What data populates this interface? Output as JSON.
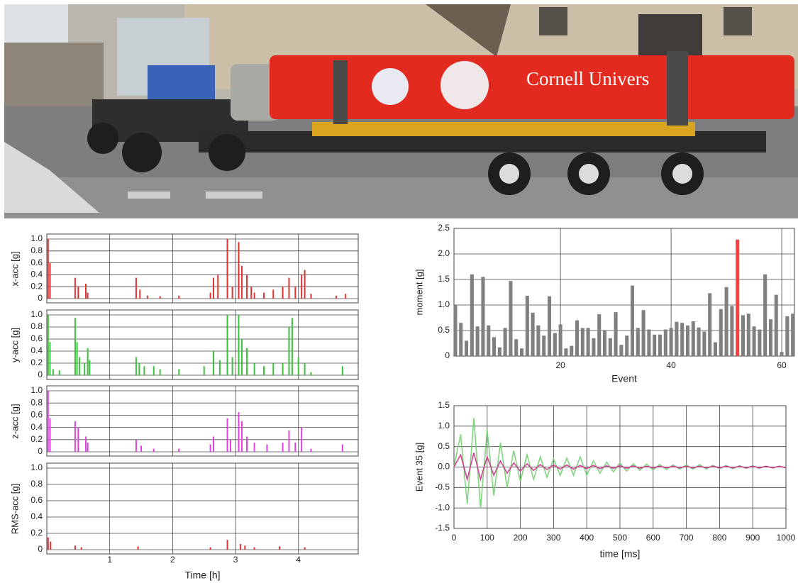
{
  "photo": {
    "text": "Cornell Univers"
  },
  "chart_data": [
    {
      "type": "stem",
      "y_label": "x-acc [g]",
      "color": "#e03030",
      "x": [
        0.02,
        0.05,
        0.45,
        0.5,
        0.62,
        0.65,
        1.42,
        1.48,
        1.6,
        1.8,
        2.1,
        2.6,
        2.65,
        2.72,
        2.87,
        2.95,
        3.05,
        3.1,
        3.18,
        3.25,
        3.3,
        3.45,
        3.6,
        3.75,
        3.85,
        3.95,
        4.05,
        4.1,
        4.2,
        4.6,
        4.75
      ],
      "values": [
        1.0,
        0.6,
        0.35,
        0.2,
        0.25,
        0.1,
        0.35,
        0.15,
        0.05,
        0.04,
        0.05,
        0.1,
        0.35,
        0.4,
        1.0,
        0.2,
        0.95,
        0.55,
        0.4,
        0.2,
        0.1,
        0.1,
        0.15,
        0.2,
        0.35,
        0.2,
        0.4,
        0.48,
        0.08,
        0.05,
        0.08
      ],
      "ylim": [
        0,
        1
      ],
      "yticks": [
        0,
        0.2,
        0.4,
        0.6,
        0.8,
        {
          "value": 1,
          "label": "1.0"
        }
      ],
      "grid": true
    },
    {
      "type": "stem",
      "y_label": "y-acc [g]",
      "color": "#3cc03c",
      "x": [
        0.02,
        0.05,
        0.1,
        0.2,
        0.45,
        0.48,
        0.52,
        0.6,
        0.65,
        0.68,
        1.42,
        1.47,
        1.55,
        1.7,
        1.8,
        2.1,
        2.5,
        2.65,
        2.75,
        2.87,
        2.95,
        3.05,
        3.1,
        3.18,
        3.3,
        3.45,
        3.6,
        3.75,
        3.85,
        3.9,
        4.0,
        4.1,
        4.2,
        4.7
      ],
      "values": [
        1.0,
        0.55,
        0.1,
        0.08,
        0.95,
        0.55,
        0.3,
        0.2,
        0.45,
        0.25,
        0.3,
        0.2,
        0.15,
        0.15,
        0.1,
        0.1,
        0.15,
        0.4,
        0.25,
        1.0,
        0.3,
        1.0,
        0.6,
        0.45,
        0.2,
        0.15,
        0.2,
        0.2,
        0.8,
        0.95,
        0.3,
        0.2,
        0.05,
        0.15
      ],
      "ylim": [
        0,
        1
      ],
      "yticks": [
        0,
        0.2,
        0.4,
        0.6,
        0.8,
        {
          "value": 1,
          "label": "1.0"
        }
      ],
      "grid": true
    },
    {
      "type": "stem",
      "y_label": "z-acc [g]",
      "color": "#e040e0",
      "x": [
        0.02,
        0.05,
        0.45,
        0.5,
        0.62,
        0.65,
        1.42,
        1.5,
        1.7,
        2.1,
        2.6,
        2.65,
        2.87,
        2.92,
        3.05,
        3.1,
        3.18,
        3.3,
        3.5,
        3.75,
        3.85,
        3.95,
        4.05,
        4.2,
        4.7
      ],
      "values": [
        1.0,
        0.55,
        0.5,
        0.4,
        0.25,
        0.15,
        0.2,
        0.1,
        0.05,
        0.05,
        0.12,
        0.25,
        0.55,
        0.2,
        0.65,
        0.5,
        0.25,
        0.15,
        0.12,
        0.15,
        0.35,
        0.15,
        0.4,
        0.05,
        0.12
      ],
      "ylim": [
        0,
        1
      ],
      "yticks": [
        0,
        0.2,
        0.4,
        0.6,
        0.8,
        {
          "value": 1,
          "label": "1.0"
        }
      ],
      "grid": true
    },
    {
      "type": "stem",
      "y_label": "RMS-acc [g]",
      "x_label": "Time [h]",
      "color": "#e03030",
      "x": [
        0.02,
        0.06,
        0.45,
        0.55,
        1.45,
        2.6,
        2.87,
        3.08,
        3.15,
        3.3,
        3.7,
        4.1
      ],
      "values": [
        0.15,
        0.1,
        0.05,
        0.03,
        0.04,
        0.03,
        0.12,
        0.07,
        0.05,
        0.03,
        0.04,
        0.03
      ],
      "xlim": [
        0,
        4.95
      ],
      "xticks": [
        1,
        2,
        3,
        4
      ],
      "ylim": [
        0,
        1
      ],
      "yticks": [
        0,
        0.2,
        0.4,
        0.6,
        0.8,
        {
          "value": 1,
          "label": "1.0"
        }
      ],
      "grid": true
    },
    {
      "type": "bar",
      "x_label": "Event",
      "y_label": "moment [g]",
      "x": [
        1,
        2,
        3,
        4,
        5,
        6,
        7,
        8,
        9,
        10,
        11,
        12,
        13,
        14,
        15,
        16,
        17,
        18,
        19,
        20,
        21,
        22,
        23,
        24,
        25,
        26,
        27,
        28,
        29,
        30,
        31,
        32,
        33,
        34,
        35,
        36,
        37,
        38,
        39,
        40,
        41,
        42,
        43,
        44,
        45,
        46,
        47,
        48,
        49,
        50,
        51,
        52,
        53,
        54,
        55,
        56,
        57,
        58,
        59,
        60,
        61,
        62
      ],
      "values": [
        1.0,
        0.65,
        0.3,
        1.6,
        0.58,
        1.55,
        0.6,
        0.37,
        0.17,
        0.55,
        1.47,
        0.33,
        0.15,
        1.18,
        0.85,
        0.6,
        0.4,
        1.17,
        0.45,
        0.62,
        0.15,
        0.2,
        0.7,
        0.55,
        0.55,
        0.35,
        0.82,
        0.5,
        0.35,
        0.86,
        0.22,
        0.4,
        1.38,
        0.55,
        0.9,
        0.52,
        0.42,
        0.42,
        0.52,
        0.55,
        0.67,
        0.65,
        0.6,
        0.68,
        0.56,
        0.48,
        1.23,
        0.27,
        0.92,
        1.35,
        0.98,
        2.28,
        0.8,
        0.83,
        0.58,
        0.52,
        1.6,
        0.72,
        1.2,
        0.08,
        0.78,
        0.83
      ],
      "colors": [
        "#808080",
        "#808080",
        "#808080",
        "#808080",
        "#808080",
        "#808080",
        "#808080",
        "#808080",
        "#808080",
        "#808080",
        "#808080",
        "#808080",
        "#808080",
        "#808080",
        "#808080",
        "#808080",
        "#808080",
        "#808080",
        "#808080",
        "#808080",
        "#808080",
        "#808080",
        "#808080",
        "#808080",
        "#808080",
        "#808080",
        "#808080",
        "#808080",
        "#808080",
        "#808080",
        "#808080",
        "#808080",
        "#808080",
        "#808080",
        "#808080",
        "#808080",
        "#808080",
        "#808080",
        "#808080",
        "#808080",
        "#808080",
        "#808080",
        "#808080",
        "#808080",
        "#808080",
        "#808080",
        "#808080",
        "#808080",
        "#808080",
        "#808080",
        "#808080",
        "#ff4040",
        "#808080",
        "#808080",
        "#808080",
        "#808080",
        "#808080",
        "#808080",
        "#808080",
        "#808080",
        "#808080",
        "#808080"
      ],
      "xlim": [
        0.75,
        62.3
      ],
      "xticks": [
        20,
        40,
        60
      ],
      "ylim": [
        0,
        2.5
      ],
      "yticks": [
        0,
        0.5,
        {
          "value": 1,
          "label": "1.0"
        },
        1.5,
        {
          "value": 2,
          "label": "2.0"
        },
        2.5
      ],
      "grid": true
    },
    {
      "type": "line",
      "x_label": "time [ms]",
      "y_label": "Event 35 [g]",
      "x": [
        0,
        20,
        40,
        60,
        80,
        100,
        120,
        140,
        160,
        180,
        200,
        220,
        240,
        260,
        280,
        300,
        320,
        340,
        360,
        380,
        400,
        420,
        440,
        460,
        480,
        500,
        520,
        540,
        560,
        580,
        600,
        620,
        640,
        660,
        680,
        700,
        720,
        740,
        760,
        780,
        800,
        820,
        840,
        860,
        880,
        900,
        920,
        940,
        960,
        980,
        1000
      ],
      "series": [
        {
          "color": "#70d070",
          "values": [
            0,
            0.8,
            -0.9,
            1.2,
            -1.0,
            0.9,
            -0.7,
            0.6,
            -0.5,
            0.4,
            -0.35,
            0.3,
            -0.3,
            0.25,
            -0.25,
            0.2,
            -0.2,
            0.22,
            -0.2,
            0.25,
            -0.2,
            0.15,
            -0.15,
            0.12,
            -0.12,
            0.1,
            -0.1,
            0.08,
            -0.08,
            0.07,
            -0.07,
            0.06,
            -0.06,
            0.05,
            -0.05,
            0.05,
            -0.05,
            0.06,
            -0.05,
            0.04,
            -0.04,
            0.04,
            -0.04,
            0.03,
            -0.03,
            0.03,
            -0.03,
            0.02,
            -0.02,
            0.02,
            -0.02
          ]
        },
        {
          "color": "#d0308a",
          "values": [
            0,
            0.3,
            -0.3,
            0.35,
            -0.3,
            0.25,
            -0.2,
            0.15,
            -0.15,
            0.1,
            -0.1,
            0.08,
            -0.08,
            0.06,
            -0.06,
            0.05,
            -0.05,
            0.05,
            -0.05,
            0.04,
            -0.04,
            0.04,
            -0.04,
            0.03,
            -0.03,
            0.03,
            -0.03,
            0.03,
            -0.03,
            0.02,
            -0.02,
            0.02,
            -0.02,
            0.02,
            -0.02,
            0.02,
            -0.02,
            0.02,
            -0.02,
            0.02,
            -0.02,
            0.02,
            -0.02,
            0.02,
            -0.02,
            0.02,
            -0.02,
            0.02,
            -0.02,
            0.02,
            -0.02
          ]
        }
      ],
      "xlim": [
        0,
        1000
      ],
      "xticks": [
        0,
        100,
        200,
        300,
        400,
        500,
        600,
        700,
        800,
        900,
        1000
      ],
      "ylim": [
        -1.5,
        1.5
      ],
      "yticks": [
        -1.5,
        {
          "value": -1,
          "label": "-1.0"
        },
        -0.5,
        {
          "value": 0,
          "label": "0.0"
        },
        0.5,
        {
          "value": 1,
          "label": "1.0"
        },
        1.5
      ],
      "grid": true
    }
  ]
}
